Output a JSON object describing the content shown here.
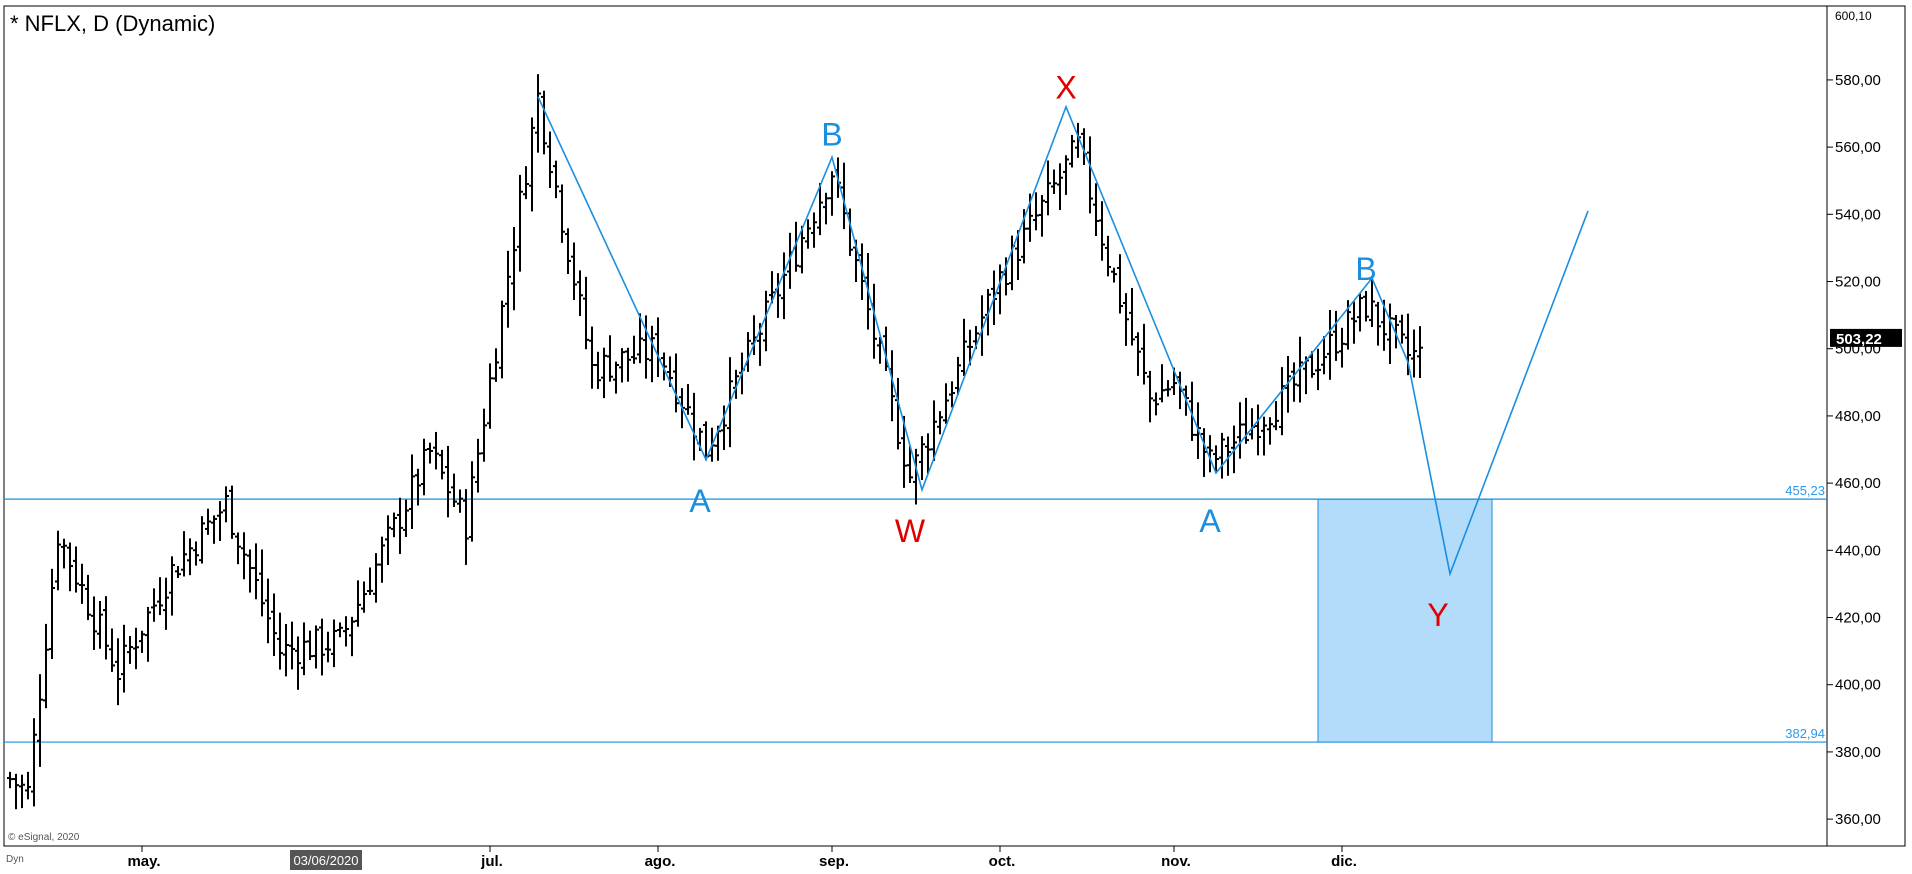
{
  "chart_data": {
    "type": "ohlc",
    "title": "* NFLX, D (Dynamic)",
    "symbol": "NFLX",
    "ylim": [
      352,
      602
    ],
    "y_ticks": [
      360,
      380,
      400,
      420,
      440,
      460,
      480,
      500,
      520,
      540,
      560,
      580
    ],
    "y_tick_labels": [
      "360,00",
      "380,00",
      "400,00",
      "420,00",
      "440,00",
      "460,00",
      "480,00",
      "500,00",
      "520,00",
      "540,00",
      "560,00",
      "580,00"
    ],
    "top_label": "600,10",
    "last_price": 503.22,
    "last_price_label": "503,22",
    "x_labels": [
      {
        "label": "may.",
        "bar": 22
      },
      {
        "label": "jul.",
        "bar": 80
      },
      {
        "label": "ago.",
        "bar": 108
      },
      {
        "label": "sep.",
        "bar": 137
      },
      {
        "label": "oct.",
        "bar": 165
      },
      {
        "label": "nov.",
        "bar": 194
      },
      {
        "label": "dic.",
        "bar": 222
      }
    ],
    "date_marker": {
      "label": "03/06/2020",
      "bar": 50
    },
    "key_points": [
      {
        "bar": 0,
        "price": 372
      },
      {
        "bar": 3,
        "price": 368
      },
      {
        "bar": 8,
        "price": 445
      },
      {
        "bar": 18,
        "price": 404
      },
      {
        "bar": 27,
        "price": 434
      },
      {
        "bar": 36,
        "price": 454
      },
      {
        "bar": 45,
        "price": 410
      },
      {
        "bar": 55,
        "price": 413
      },
      {
        "bar": 70,
        "price": 469
      },
      {
        "bar": 76,
        "price": 448
      },
      {
        "bar": 88,
        "price": 575
      },
      {
        "bar": 97,
        "price": 494
      },
      {
        "bar": 108,
        "price": 500
      },
      {
        "bar": 116,
        "price": 470
      },
      {
        "bar": 137,
        "price": 553
      },
      {
        "bar": 150,
        "price": 462
      },
      {
        "bar": 165,
        "price": 521
      },
      {
        "bar": 178,
        "price": 560
      },
      {
        "bar": 183,
        "price": 527
      },
      {
        "bar": 190,
        "price": 485
      },
      {
        "bar": 194,
        "price": 490
      },
      {
        "bar": 200,
        "price": 466
      },
      {
        "bar": 212,
        "price": 485
      },
      {
        "bar": 226,
        "price": 513
      },
      {
        "bar": 233,
        "price": 498
      }
    ],
    "wave_path": [
      {
        "bar": 88,
        "price": 575
      },
      {
        "bar": 116,
        "price": 467
      },
      {
        "bar": 137,
        "price": 557
      },
      {
        "bar": 152,
        "price": 458
      },
      {
        "bar": 176,
        "price": 572
      },
      {
        "bar": 201,
        "price": 463
      },
      {
        "bar": 227,
        "price": 521
      },
      {
        "bar": 233,
        "price": 496
      },
      {
        "bar": 240,
        "price": 433
      },
      {
        "bar": 263,
        "price": 541
      }
    ],
    "wave_labels": [
      {
        "text": "A",
        "color": "blue",
        "bar": 115,
        "price": 455
      },
      {
        "text": "B",
        "color": "blue",
        "bar": 137,
        "price": 564
      },
      {
        "text": "W",
        "color": "red",
        "bar": 150,
        "price": 446
      },
      {
        "text": "X",
        "color": "red",
        "bar": 176,
        "price": 578
      },
      {
        "text": "A",
        "color": "blue",
        "bar": 200,
        "price": 449
      },
      {
        "text": "B",
        "color": "blue",
        "bar": 226,
        "price": 524
      },
      {
        "text": "Y",
        "color": "red",
        "bar": 238,
        "price": 421
      }
    ],
    "levels": [
      {
        "price": 455.23,
        "label": "455,23"
      },
      {
        "price": 382.94,
        "label": "382,94"
      }
    ],
    "target_zone": {
      "bar_from": 218,
      "bar_to": 247,
      "price_low": 382.94,
      "price_high": 455.23
    },
    "bar_count": 236,
    "colors": {
      "bars": "#000000",
      "wave": "#1a8fe0",
      "zone": "#b3dcfb",
      "red_label": "#e00000"
    }
  },
  "watermark": "© eSignal, 2020",
  "bottom_left": "Dyn"
}
